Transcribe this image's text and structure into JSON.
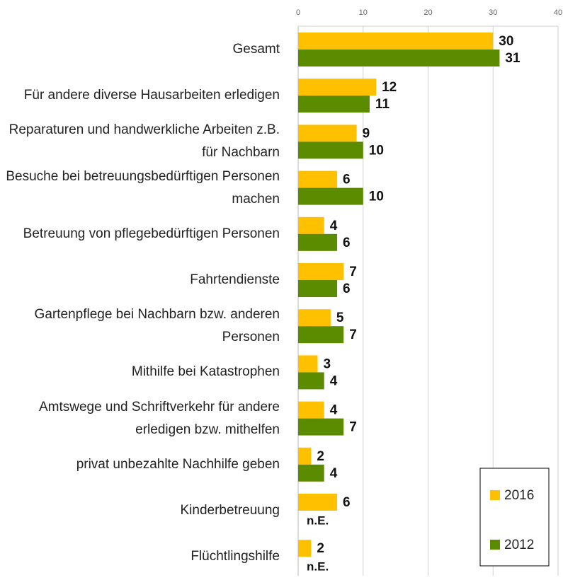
{
  "chart_data": {
    "type": "hbar",
    "categories": [
      "Gesamt",
      "Für andere diverse Hausarbeiten erledigen",
      "Reparaturen und handwerkliche Arbeiten z.B. für Nachbarn",
      "Besuche bei betreuungsbedürftigen Personen machen",
      "Betreuung von pflegebedürftigen Personen",
      "Fahrtendienste",
      "Gartenpflege bei Nachbarn bzw. anderen Personen",
      "Mithilfe bei Katastrophen",
      "Amtswege und Schriftverkehr für andere erledigen bzw. mithelfen",
      "privat unbezahlte Nachhilfe geben",
      "Kinderbetreuung",
      "Flüchtlingshilfe"
    ],
    "series": [
      {
        "name": "2016",
        "color": "#ffc000",
        "values": [
          30,
          12,
          9,
          6,
          4,
          7,
          5,
          3,
          4,
          2,
          6,
          2
        ]
      },
      {
        "name": "2012",
        "color": "#5b8c00",
        "values": [
          31,
          11,
          10,
          10,
          6,
          6,
          7,
          4,
          7,
          4,
          null,
          null
        ],
        "value_labels": [
          "31",
          "11",
          "10",
          "10",
          "6",
          "6",
          "7",
          "4",
          "7",
          "4",
          "n.E.",
          "n.E."
        ]
      }
    ],
    "xlim": [
      0,
      40
    ],
    "xticks": [
      0,
      10,
      20,
      30,
      40
    ],
    "grid": true,
    "legend": "lower right"
  }
}
